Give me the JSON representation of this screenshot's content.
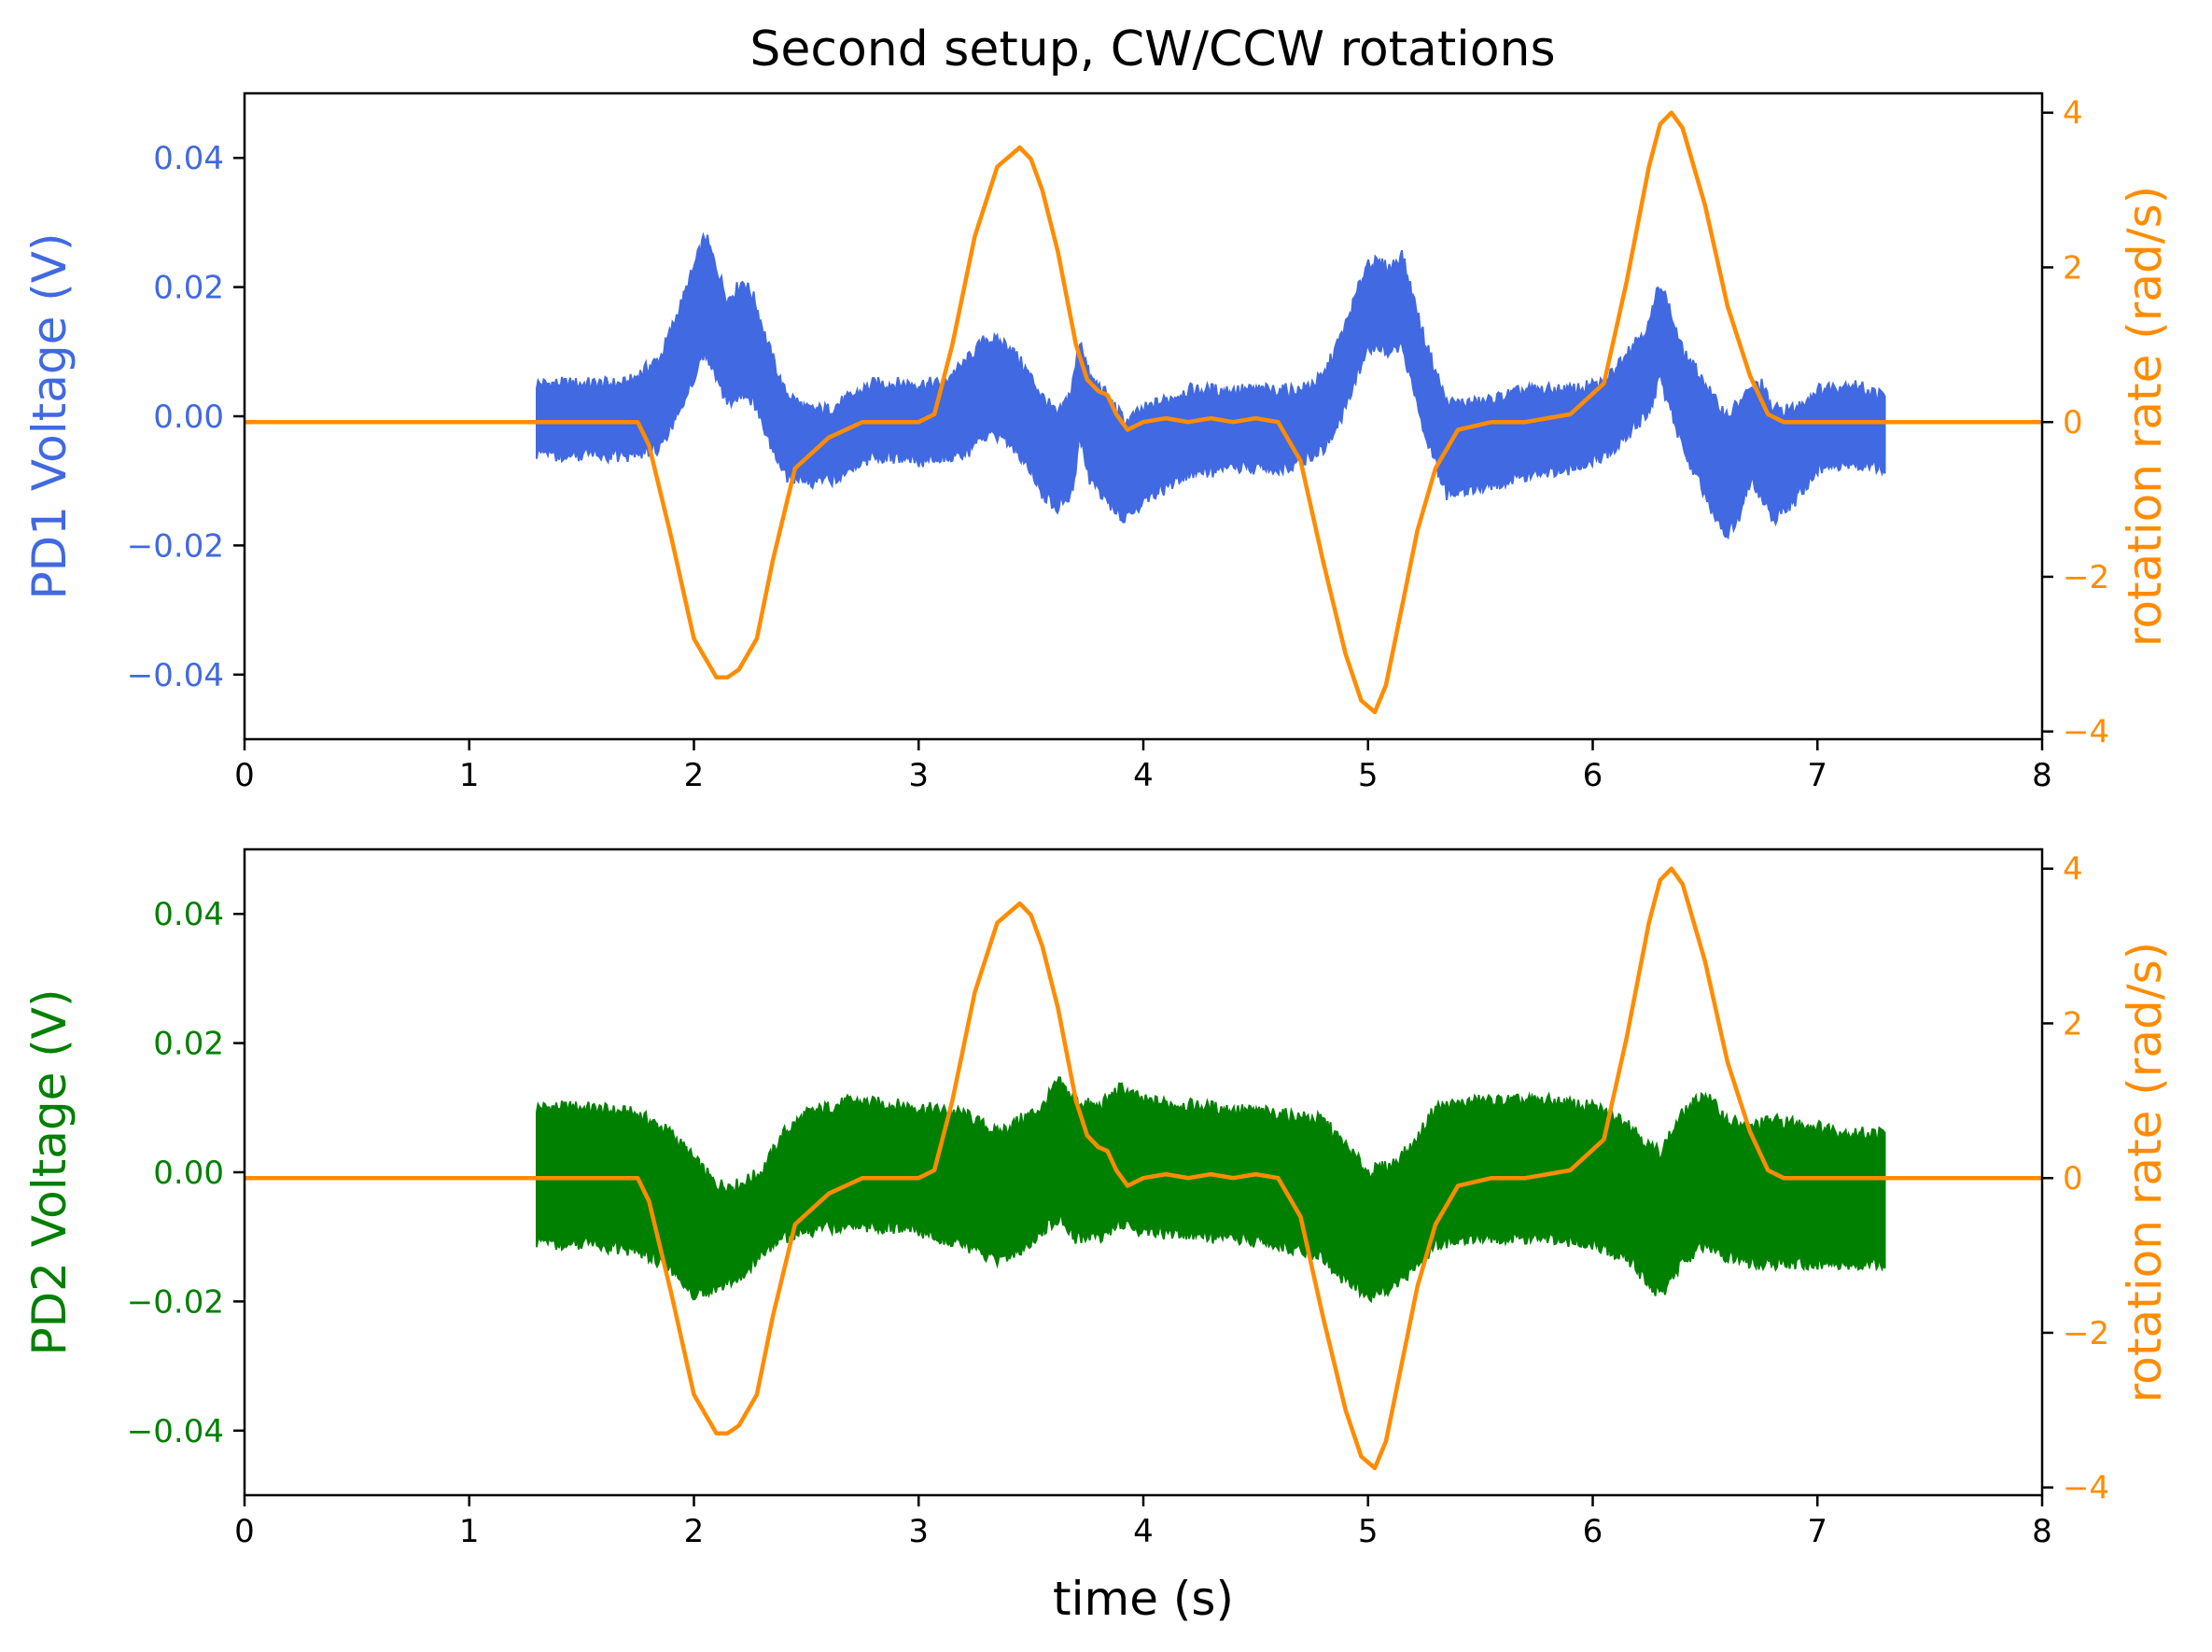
{
  "title": "Second setup, CW/CCW rotations",
  "colors": {
    "pd1": "#4169e1",
    "pd2": "#008000",
    "rotation": "#ff8c00",
    "axis": "#000000"
  },
  "chart_data": [
    {
      "type": "line",
      "panel": "top",
      "xlabel": "",
      "ylabel_left": "PD1 Voltage (V)",
      "ylabel_right": "rotation rate (rad/s)",
      "xlim": [
        0,
        8
      ],
      "ylim_left": [
        -0.05,
        0.05
      ],
      "ylim_right": [
        -4.1,
        4.25
      ],
      "xticks": [
        "0",
        "1",
        "2",
        "3",
        "4",
        "5",
        "6",
        "7",
        "8"
      ],
      "yticks_left": [
        "−0.04",
        "−0.02",
        "0.00",
        "0.02",
        "0.04"
      ],
      "yticks_right": [
        "−4",
        "−2",
        "0",
        "2",
        "4"
      ],
      "grid": false,
      "series": [
        {
          "name": "PD1 Voltage (V)",
          "axis": "left",
          "style": "band",
          "x": [
            1.3,
            1.5,
            1.7,
            1.85,
            1.95,
            2.05,
            2.1,
            2.15,
            2.22,
            2.27,
            2.32,
            2.4,
            2.5,
            2.6,
            2.8,
            3.0,
            3.1,
            3.2,
            3.3,
            3.4,
            3.5,
            3.55,
            3.62,
            3.68,
            3.72,
            3.76,
            3.82,
            3.88,
            3.92,
            4.0,
            4.2,
            4.4,
            4.6,
            4.7,
            4.8,
            4.9,
            5.0,
            5.1,
            5.15,
            5.25,
            5.35,
            5.5,
            5.7,
            5.9,
            6.05,
            6.15,
            6.25,
            6.3,
            6.4,
            6.5,
            6.55,
            6.6,
            6.65,
            6.7,
            6.75,
            6.8,
            6.9,
            7.0,
            7.15,
            7.3
          ],
          "upper": [
            0.005,
            0.005,
            0.005,
            0.009,
            0.018,
            0.028,
            0.023,
            0.018,
            0.021,
            0.018,
            0.012,
            0.004,
            0.001,
            0.001,
            0.005,
            0.005,
            0.005,
            0.008,
            0.012,
            0.011,
            0.006,
            0.003,
            0.0,
            0.004,
            0.012,
            0.006,
            0.004,
            0.001,
            -0.001,
            0.001,
            0.004,
            0.004,
            0.004,
            0.004,
            0.006,
            0.014,
            0.024,
            0.023,
            0.025,
            0.012,
            0.002,
            0.002,
            0.004,
            0.004,
            0.005,
            0.01,
            0.014,
            0.021,
            0.01,
            0.005,
            0.002,
            0.0,
            0.002,
            0.004,
            0.005,
            0.001,
            0.001,
            0.004,
            0.005,
            0.003
          ],
          "lower": [
            -0.006,
            -0.006,
            -0.006,
            -0.005,
            0.002,
            0.01,
            0.006,
            0.002,
            0.004,
            0.002,
            -0.003,
            -0.009,
            -0.01,
            -0.01,
            -0.006,
            -0.007,
            -0.006,
            -0.006,
            -0.003,
            -0.004,
            -0.008,
            -0.012,
            -0.014,
            -0.012,
            -0.003,
            -0.01,
            -0.012,
            -0.015,
            -0.016,
            -0.013,
            -0.009,
            -0.008,
            -0.008,
            -0.007,
            -0.005,
            0.001,
            0.011,
            0.01,
            0.011,
            -0.002,
            -0.012,
            -0.011,
            -0.009,
            -0.008,
            -0.006,
            -0.003,
            0.001,
            0.006,
            -0.005,
            -0.012,
            -0.016,
            -0.018,
            -0.016,
            -0.01,
            -0.012,
            -0.016,
            -0.013,
            -0.008,
            -0.007,
            -0.008
          ]
        },
        {
          "name": "rotation rate (rad/s)",
          "axis": "right",
          "style": "line",
          "x": [
            0.0,
            1.2,
            1.3,
            1.75,
            1.8,
            1.9,
            2.0,
            2.1,
            2.15,
            2.2,
            2.28,
            2.35,
            2.45,
            2.6,
            2.75,
            3.0,
            3.07,
            3.15,
            3.25,
            3.35,
            3.45,
            3.5,
            3.55,
            3.62,
            3.7,
            3.75,
            3.8,
            3.84,
            3.88,
            3.93,
            4.0,
            4.1,
            4.2,
            4.3,
            4.4,
            4.5,
            4.6,
            4.7,
            4.8,
            4.9,
            4.97,
            5.03,
            5.08,
            5.15,
            5.22,
            5.3,
            5.4,
            5.55,
            5.7,
            5.9,
            6.05,
            6.15,
            6.25,
            6.3,
            6.35,
            6.4,
            6.5,
            6.6,
            6.7,
            6.78,
            6.85,
            6.9,
            7.3,
            8.0
          ],
          "y": [
            0.0,
            0.0,
            0.0,
            0.0,
            -0.3,
            -1.5,
            -2.8,
            -3.3,
            -3.3,
            -3.2,
            -2.8,
            -1.8,
            -0.6,
            -0.2,
            0.0,
            0.0,
            0.1,
            1.0,
            2.4,
            3.3,
            3.55,
            3.4,
            3.0,
            2.2,
            1.0,
            0.55,
            0.4,
            0.35,
            0.1,
            -0.1,
            0.0,
            0.05,
            0.0,
            0.05,
            0.0,
            0.05,
            0.0,
            -0.5,
            -1.8,
            -3.0,
            -3.6,
            -3.75,
            -3.4,
            -2.4,
            -1.4,
            -0.6,
            -0.1,
            0.0,
            0.0,
            0.1,
            0.5,
            1.8,
            3.3,
            3.85,
            4.0,
            3.8,
            2.8,
            1.5,
            0.6,
            0.1,
            0.0,
            0.0,
            0.0,
            0.0
          ]
        }
      ]
    },
    {
      "type": "line",
      "panel": "bottom",
      "xlabel": "time (s)",
      "ylabel_left": "PD2 Voltage (V)",
      "ylabel_right": "rotation rate (rad/s)",
      "xlim": [
        0,
        8
      ],
      "ylim_left": [
        -0.05,
        0.05
      ],
      "ylim_right": [
        -4.1,
        4.25
      ],
      "xticks": [
        "0",
        "1",
        "2",
        "3",
        "4",
        "5",
        "6",
        "7",
        "8"
      ],
      "yticks_left": [
        "−0.04",
        "−0.02",
        "0.00",
        "0.02",
        "0.04"
      ],
      "yticks_right": [
        "−4",
        "−2",
        "0",
        "2",
        "4"
      ],
      "grid": false,
      "series": [
        {
          "name": "PD2 Voltage (V)",
          "axis": "left",
          "style": "band",
          "x": [
            1.3,
            1.5,
            1.75,
            1.9,
            2.0,
            2.1,
            2.2,
            2.3,
            2.4,
            2.5,
            2.7,
            3.0,
            3.2,
            3.35,
            3.45,
            3.55,
            3.62,
            3.7,
            3.8,
            3.9,
            4.0,
            4.3,
            4.6,
            4.8,
            4.9,
            5.0,
            5.1,
            5.2,
            5.3,
            5.5,
            5.8,
            6.0,
            6.15,
            6.25,
            6.3,
            6.4,
            6.5,
            6.6,
            6.7,
            6.8,
            7.0,
            7.15,
            7.3
          ],
          "upper": [
            0.01,
            0.01,
            0.009,
            0.006,
            0.002,
            -0.002,
            -0.002,
            0.0,
            0.006,
            0.009,
            0.011,
            0.01,
            0.009,
            0.006,
            0.008,
            0.01,
            0.014,
            0.011,
            0.01,
            0.013,
            0.011,
            0.01,
            0.009,
            0.008,
            0.004,
            0.0,
            0.001,
            0.004,
            0.01,
            0.011,
            0.011,
            0.01,
            0.008,
            0.004,
            0.003,
            0.009,
            0.012,
            0.008,
            0.007,
            0.008,
            0.007,
            0.006,
            0.006
          ],
          "lower": [
            -0.011,
            -0.011,
            -0.012,
            -0.015,
            -0.019,
            -0.018,
            -0.016,
            -0.013,
            -0.01,
            -0.009,
            -0.008,
            -0.009,
            -0.011,
            -0.014,
            -0.012,
            -0.009,
            -0.007,
            -0.01,
            -0.01,
            -0.008,
            -0.009,
            -0.01,
            -0.011,
            -0.013,
            -0.017,
            -0.019,
            -0.018,
            -0.015,
            -0.011,
            -0.01,
            -0.01,
            -0.011,
            -0.013,
            -0.017,
            -0.019,
            -0.014,
            -0.011,
            -0.013,
            -0.014,
            -0.014,
            -0.014,
            -0.014,
            -0.014
          ]
        },
        {
          "name": "rotation rate (rad/s)",
          "axis": "right",
          "style": "line",
          "x": [
            0.0,
            1.2,
            1.3,
            1.75,
            1.8,
            1.9,
            2.0,
            2.1,
            2.15,
            2.2,
            2.28,
            2.35,
            2.45,
            2.6,
            2.75,
            3.0,
            3.07,
            3.15,
            3.25,
            3.35,
            3.45,
            3.5,
            3.55,
            3.62,
            3.7,
            3.75,
            3.8,
            3.84,
            3.88,
            3.93,
            4.0,
            4.1,
            4.2,
            4.3,
            4.4,
            4.5,
            4.6,
            4.7,
            4.8,
            4.9,
            4.97,
            5.03,
            5.08,
            5.15,
            5.22,
            5.3,
            5.4,
            5.55,
            5.7,
            5.9,
            6.05,
            6.15,
            6.25,
            6.3,
            6.35,
            6.4,
            6.5,
            6.6,
            6.7,
            6.78,
            6.85,
            6.9,
            7.3,
            8.0
          ],
          "y": [
            0.0,
            0.0,
            0.0,
            0.0,
            -0.3,
            -1.5,
            -2.8,
            -3.3,
            -3.3,
            -3.2,
            -2.8,
            -1.8,
            -0.6,
            -0.2,
            0.0,
            0.0,
            0.1,
            1.0,
            2.4,
            3.3,
            3.55,
            3.4,
            3.0,
            2.2,
            1.0,
            0.55,
            0.4,
            0.35,
            0.1,
            -0.1,
            0.0,
            0.05,
            0.0,
            0.05,
            0.0,
            0.05,
            0.0,
            -0.5,
            -1.8,
            -3.0,
            -3.6,
            -3.75,
            -3.4,
            -2.4,
            -1.4,
            -0.6,
            -0.1,
            0.0,
            0.0,
            0.1,
            0.5,
            1.8,
            3.3,
            3.85,
            4.0,
            3.8,
            2.8,
            1.5,
            0.6,
            0.1,
            0.0,
            0.0,
            0.0,
            0.0
          ]
        }
      ]
    }
  ]
}
